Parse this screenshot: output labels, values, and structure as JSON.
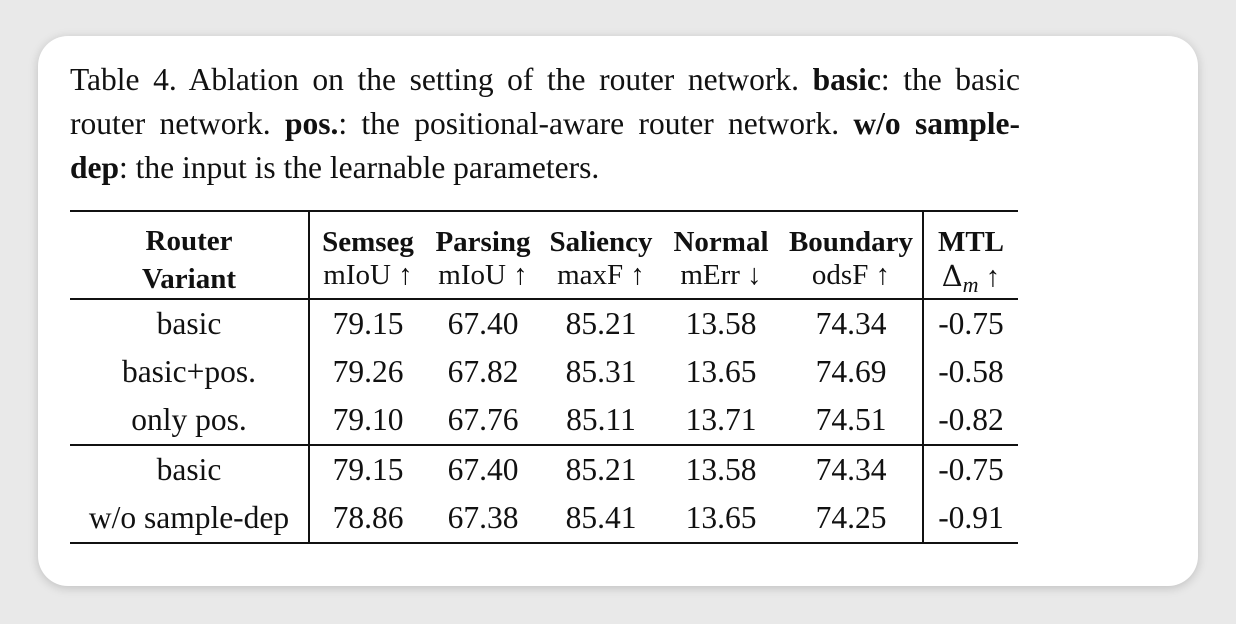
{
  "caption": {
    "label": "Table 4.",
    "intro": " Ablation on the setting of the router network. ",
    "term1": "basic",
    "def1": ": the basic router network. ",
    "term2": "pos.",
    "def2": ": the positional-aware router network. ",
    "term3": "w/o sample-dep",
    "def3": ": the input is the learnable parameters."
  },
  "table": {
    "variant_header_line1": "Router",
    "variant_header_line2": "Variant",
    "columns": [
      {
        "name": "Semseg",
        "metric": "mIoU ↑"
      },
      {
        "name": "Parsing",
        "metric": "mIoU ↑"
      },
      {
        "name": "Saliency",
        "metric": "maxF ↑"
      },
      {
        "name": "Normal",
        "metric": "mErr ↓"
      },
      {
        "name": "Boundary",
        "metric": "odsF ↑"
      }
    ],
    "mtl": {
      "name": "MTL",
      "delta": "Δ",
      "sub": "m",
      "arrow": " ↑"
    },
    "rows": [
      {
        "variant": "basic",
        "values": [
          "79.15",
          "67.40",
          "85.21",
          "13.58",
          "74.34"
        ],
        "mtl": "-0.75"
      },
      {
        "variant": "basic+pos.",
        "values": [
          "79.26",
          "67.82",
          "85.31",
          "13.65",
          "74.69"
        ],
        "mtl": "-0.58"
      },
      {
        "variant": "only pos.",
        "values": [
          "79.10",
          "67.76",
          "85.11",
          "13.71",
          "74.51"
        ],
        "mtl": "-0.82"
      },
      {
        "variant": "basic",
        "values": [
          "79.15",
          "67.40",
          "85.21",
          "13.58",
          "74.34"
        ],
        "mtl": "-0.75"
      },
      {
        "variant": "w/o sample-dep",
        "values": [
          "78.86",
          "67.38",
          "85.41",
          "13.65",
          "74.25"
        ],
        "mtl": "-0.91"
      }
    ]
  }
}
